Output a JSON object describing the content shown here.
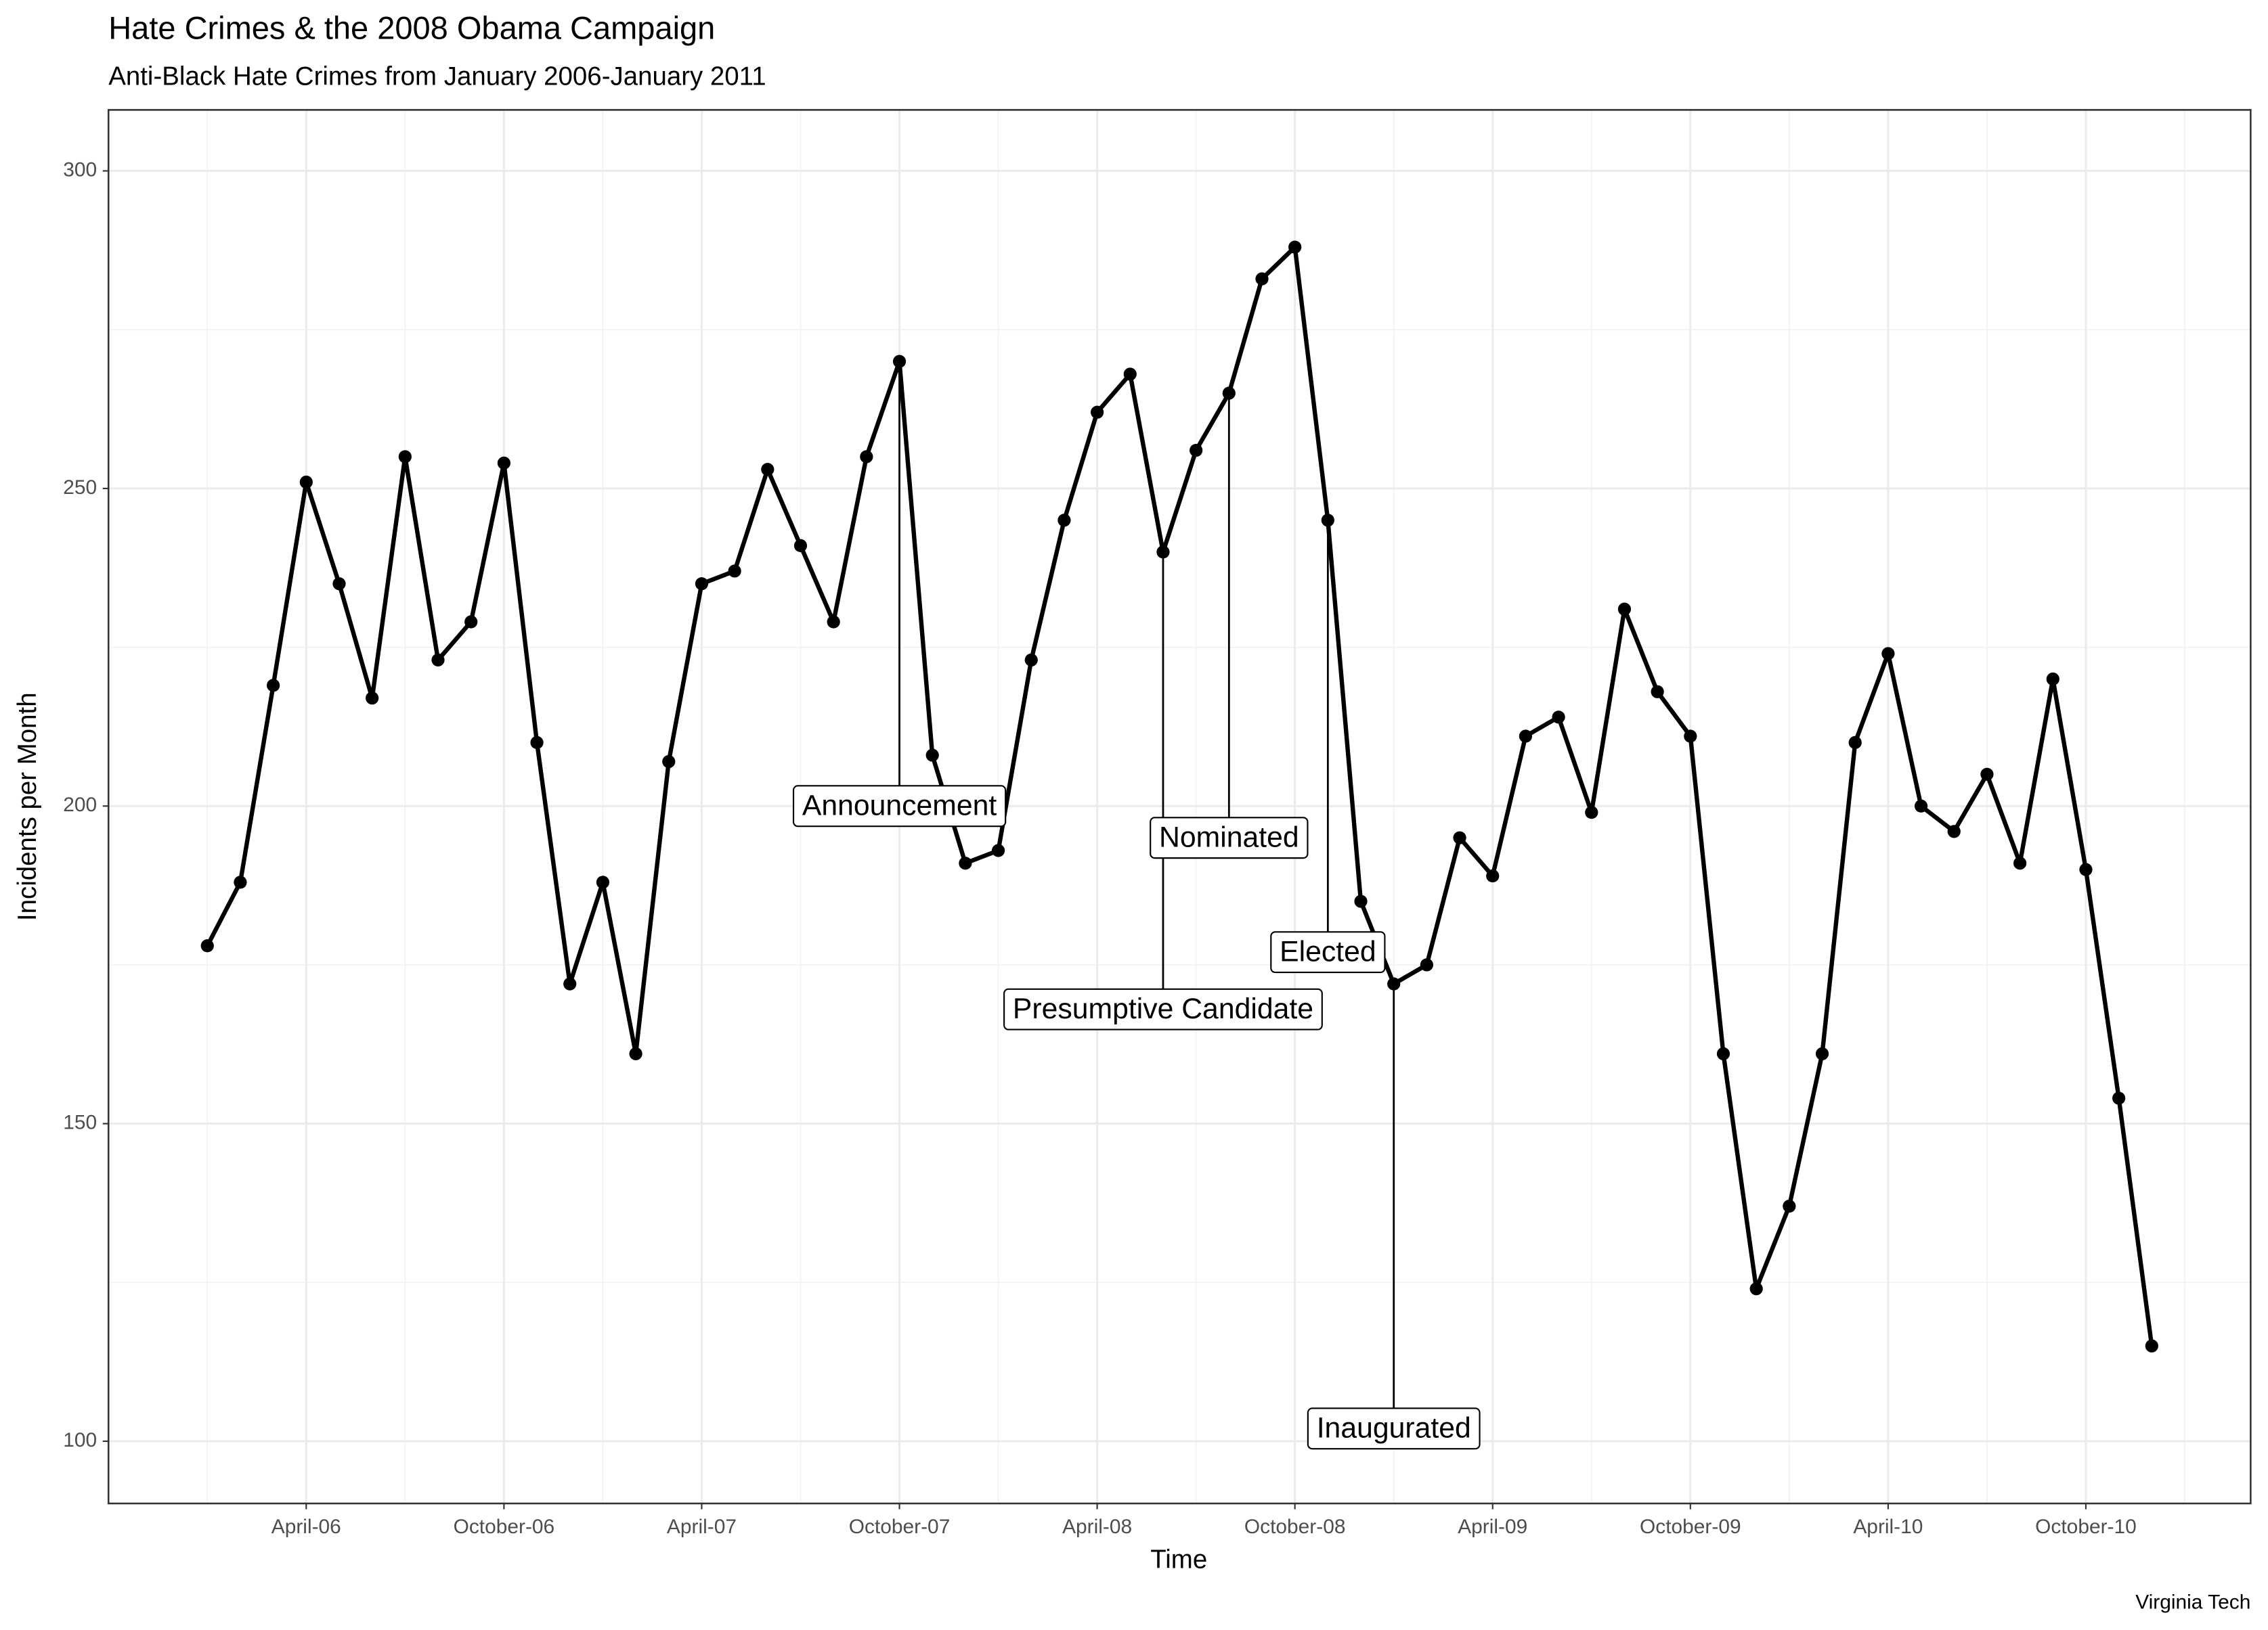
{
  "chart_data": {
    "type": "line",
    "title": "Hate Crimes & the 2008 Obama Campaign",
    "subtitle": "Anti-Black Hate Crimes from January 2006-January 2011",
    "x_label": "Time",
    "y_label": "Incidents per Month",
    "caption": "Virginia Tech",
    "x": [
      "2006-01",
      "2006-02",
      "2006-03",
      "2006-04",
      "2006-05",
      "2006-06",
      "2006-07",
      "2006-08",
      "2006-09",
      "2006-10",
      "2006-11",
      "2006-12",
      "2007-01",
      "2007-02",
      "2007-03",
      "2007-04",
      "2007-05",
      "2007-06",
      "2007-07",
      "2007-08",
      "2007-09",
      "2007-10",
      "2007-11",
      "2007-12",
      "2008-01",
      "2008-02",
      "2008-03",
      "2008-04",
      "2008-05",
      "2008-06",
      "2008-07",
      "2008-08",
      "2008-09",
      "2008-10",
      "2008-11",
      "2008-12",
      "2009-01",
      "2009-02",
      "2009-03",
      "2009-04",
      "2009-05",
      "2009-06",
      "2009-07",
      "2009-08",
      "2009-09",
      "2009-10",
      "2009-11",
      "2009-12",
      "2010-01",
      "2010-02",
      "2010-03",
      "2010-04",
      "2010-05",
      "2010-06",
      "2010-07",
      "2010-08",
      "2010-09",
      "2010-10",
      "2010-11",
      "2010-12"
    ],
    "series": [
      {
        "color": "#000000",
        "values": [
          178,
          188,
          219,
          251,
          235,
          217,
          255,
          223,
          229,
          254,
          210,
          172,
          188,
          161,
          207,
          235,
          237,
          253,
          241,
          229,
          255,
          270,
          208,
          191,
          193,
          223,
          245,
          262,
          268,
          240,
          256,
          265,
          283,
          288,
          245,
          185,
          172,
          175,
          195,
          189,
          211,
          214,
          199,
          231,
          218,
          211,
          161,
          124,
          137,
          161,
          210,
          224,
          200,
          196,
          205,
          191,
          220,
          190,
          154,
          115
        ]
      }
    ],
    "annotations": [
      {
        "label": "Announcement",
        "x": "2007-10",
        "y": 200
      },
      {
        "label": "Presumptive Candidate",
        "x": "2008-06",
        "y": 168
      },
      {
        "label": "Nominated",
        "x": "2008-08",
        "y": 195
      },
      {
        "label": "Elected",
        "x": "2008-11",
        "y": 177
      },
      {
        "label": "Inaugurated",
        "x": "2009-01",
        "y": 102
      }
    ],
    "xlim": [
      "2005-10",
      "2011-03"
    ],
    "xticks": [
      {
        "value": "2006-04",
        "label": "April-06"
      },
      {
        "value": "2006-10",
        "label": "October-06"
      },
      {
        "value": "2007-04",
        "label": "April-07"
      },
      {
        "value": "2007-10",
        "label": "October-07"
      },
      {
        "value": "2008-04",
        "label": "April-08"
      },
      {
        "value": "2008-10",
        "label": "October-08"
      },
      {
        "value": "2009-04",
        "label": "April-09"
      },
      {
        "value": "2009-10",
        "label": "October-09"
      },
      {
        "value": "2010-04",
        "label": "April-10"
      },
      {
        "value": "2010-10",
        "label": "October-10"
      }
    ],
    "ylim": [
      90.2,
      309.6
    ],
    "yticks": [
      100,
      150,
      200,
      250,
      300
    ],
    "grid": true
  }
}
